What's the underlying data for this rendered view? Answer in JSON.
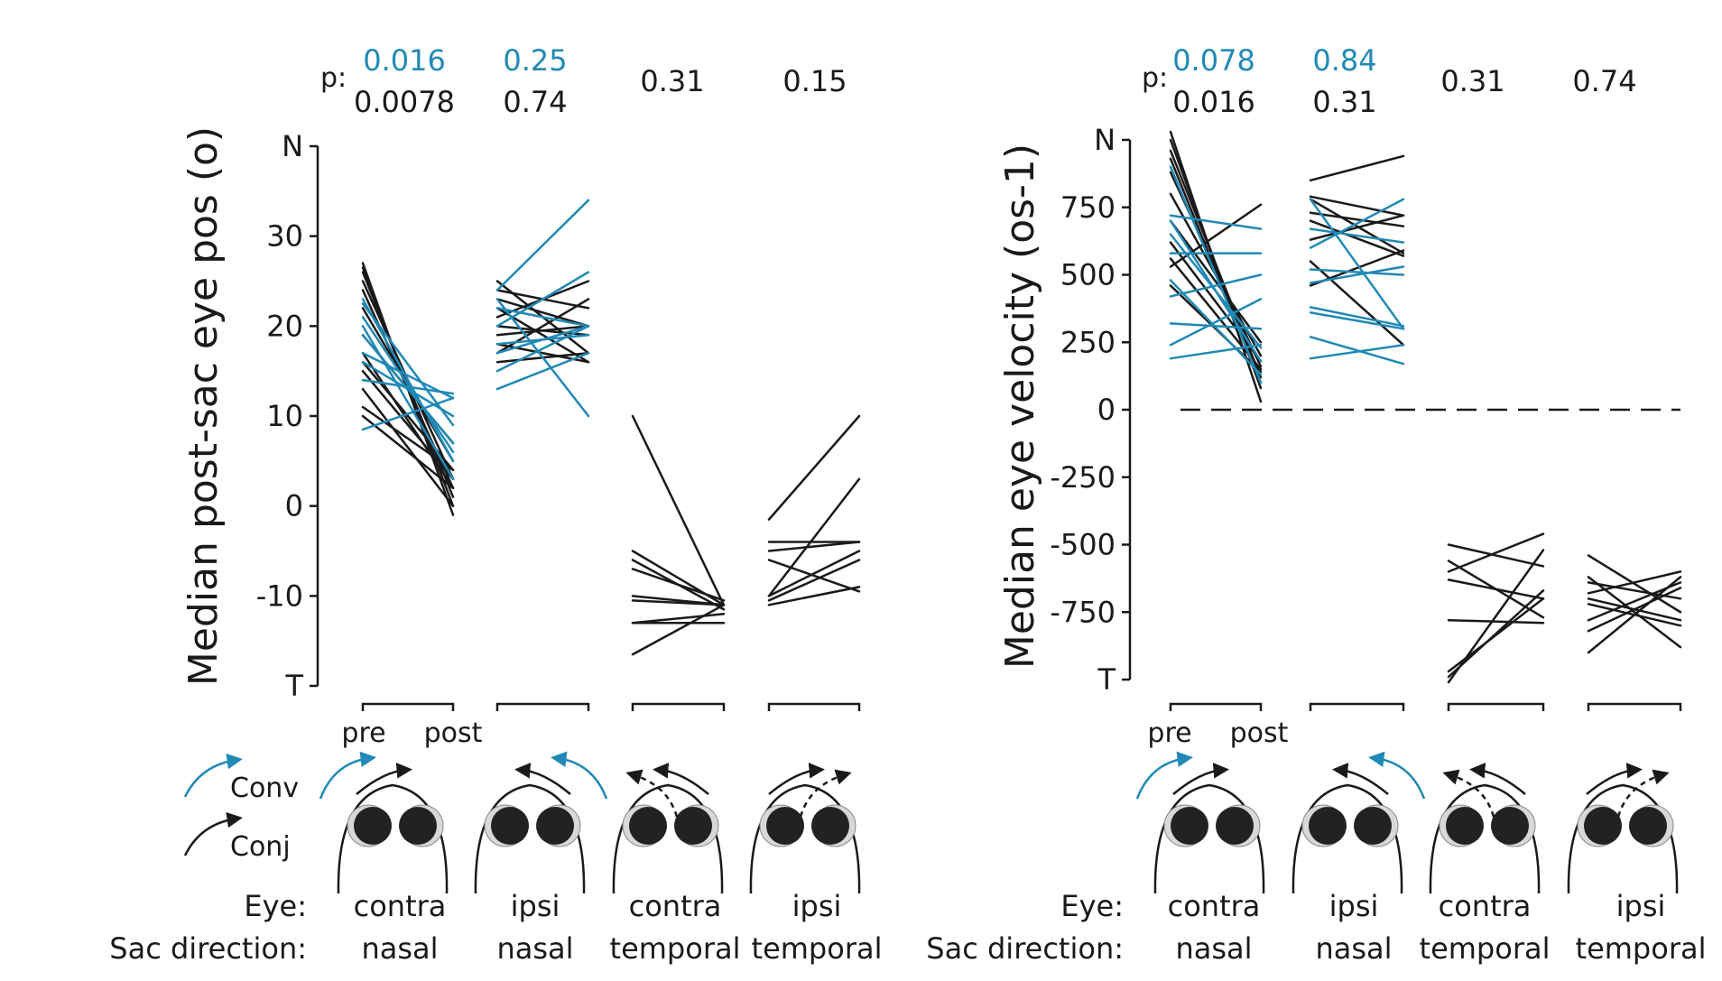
{
  "figure": {
    "colors": {
      "conv": "#2189b5",
      "conj": "#1a1a1a",
      "eye_fill": "#222222"
    },
    "condition_labels": {
      "eye_row_label": "Eye:",
      "sac_row_label": "Sac direction:"
    },
    "conditions": [
      {
        "eye": "contra",
        "sac": "nasal"
      },
      {
        "eye": "ipsi",
        "sac": "nasal"
      },
      {
        "eye": "contra",
        "sac": "temporal"
      },
      {
        "eye": "ipsi",
        "sac": "temporal"
      }
    ],
    "legend": {
      "conv": "Conv",
      "conj": "Conj"
    },
    "pre_label": "pre",
    "post_label": "post",
    "p_label": "p:"
  },
  "chart_data": [
    {
      "type": "line",
      "title": "",
      "ylabel": "Median post-sac eye pos (o)",
      "xlabel": "",
      "ylim": [
        -20,
        40
      ],
      "yticks": [
        -10,
        0,
        10,
        20,
        30
      ],
      "ytick_labels": [
        "-10",
        "0",
        "10",
        "20",
        "30"
      ],
      "top_tick_label": "N",
      "bottom_tick_label": "T",
      "zero_line": false,
      "p_values": [
        {
          "conv": "0.016",
          "conj": "0.0078"
        },
        {
          "conv": "0.25",
          "conj": "0.74"
        },
        {
          "conv": "",
          "conj": "0.31"
        },
        {
          "conv": "",
          "conj": "0.15"
        }
      ],
      "groups": [
        {
          "conj": [
            [
              27,
              -1
            ],
            [
              26.5,
              0
            ],
            [
              26,
              1
            ],
            [
              25,
              3
            ],
            [
              24,
              2
            ],
            [
              22,
              5
            ],
            [
              19,
              7
            ],
            [
              17,
              2
            ],
            [
              16,
              4
            ],
            [
              15,
              3
            ],
            [
              13,
              0
            ],
            [
              11,
              4
            ],
            [
              10,
              2
            ]
          ],
          "conv": [
            [
              23,
              5
            ],
            [
              22.5,
              9
            ],
            [
              21,
              6
            ],
            [
              20,
              3
            ],
            [
              19,
              7
            ],
            [
              17,
              12
            ],
            [
              16,
              10
            ],
            [
              14,
              12.5
            ],
            [
              8.5,
              12
            ]
          ]
        },
        {
          "conj": [
            [
              25,
              17
            ],
            [
              24,
              22
            ],
            [
              23,
              20
            ],
            [
              22,
              16
            ],
            [
              21,
              25
            ],
            [
              20,
              19
            ],
            [
              19,
              20
            ],
            [
              18,
              16
            ],
            [
              17,
              23
            ],
            [
              16,
              17
            ]
          ],
          "conv": [
            [
              24,
              34
            ],
            [
              23,
              10
            ],
            [
              22,
              20
            ],
            [
              20,
              26
            ],
            [
              18,
              19
            ],
            [
              17,
              20
            ],
            [
              15,
              20
            ],
            [
              13,
              17
            ]
          ]
        },
        {
          "conj": [
            [
              10,
              -11
            ],
            [
              -5,
              -11
            ],
            [
              -6,
              -11.5
            ],
            [
              -7,
              -10.5
            ],
            [
              -10,
              -11
            ],
            [
              -10.5,
              -11
            ],
            [
              -13,
              -12
            ],
            [
              -13,
              -13
            ],
            [
              -16.5,
              -11
            ]
          ],
          "conv": []
        },
        {
          "conj": [
            [
              -1.5,
              10
            ],
            [
              -4,
              -4
            ],
            [
              -5,
              -4
            ],
            [
              -6,
              -9.5
            ],
            [
              -10,
              3
            ],
            [
              -10,
              -5
            ],
            [
              -10.5,
              -6
            ],
            [
              -11,
              -9
            ]
          ],
          "conv": []
        }
      ]
    },
    {
      "type": "line",
      "title": "",
      "ylabel": "Median eye velocity (os-1)",
      "xlabel": "",
      "ylim": [
        -1000,
        1000
      ],
      "yticks": [
        -750,
        -500,
        -250,
        0,
        250,
        500,
        750
      ],
      "ytick_labels": [
        "-750",
        "-500",
        "-250",
        "0",
        "250",
        "500",
        "750"
      ],
      "top_tick_label": "N",
      "bottom_tick_label": "T",
      "zero_line": true,
      "p_values": [
        {
          "conv": "0.078",
          "conj": "0.016"
        },
        {
          "conv": "0.84",
          "conj": "0.31"
        },
        {
          "conv": "",
          "conj": "0.31"
        },
        {
          "conv": "",
          "conj": "0.74"
        }
      ],
      "groups": [
        {
          "conj": [
            [
              1030,
              30
            ],
            [
              1000,
              80
            ],
            [
              960,
              120
            ],
            [
              930,
              100
            ],
            [
              880,
              160
            ],
            [
              800,
              200
            ],
            [
              700,
              250
            ],
            [
              620,
              180
            ],
            [
              560,
              150
            ],
            [
              530,
              760
            ],
            [
              460,
              140
            ]
          ],
          "conv": [
            [
              900,
              100
            ],
            [
              720,
              670
            ],
            [
              700,
              180
            ],
            [
              650,
              230
            ],
            [
              580,
              580
            ],
            [
              480,
              130
            ],
            [
              420,
              500
            ],
            [
              320,
              300
            ],
            [
              240,
              410
            ],
            [
              190,
              240
            ]
          ]
        },
        {
          "conj": [
            [
              850,
              940
            ],
            [
              790,
              720
            ],
            [
              780,
              580
            ],
            [
              730,
              680
            ],
            [
              700,
              570
            ],
            [
              630,
              720
            ],
            [
              550,
              240
            ],
            [
              460,
              590
            ]
          ],
          "conv": [
            [
              780,
              300
            ],
            [
              670,
              620
            ],
            [
              600,
              780
            ],
            [
              520,
              500
            ],
            [
              470,
              530
            ],
            [
              380,
              310
            ],
            [
              360,
              300
            ],
            [
              270,
              170
            ],
            [
              190,
              240
            ]
          ]
        },
        {
          "conj": [
            [
              -500,
              -580
            ],
            [
              -560,
              -770
            ],
            [
              -600,
              -460
            ],
            [
              -630,
              -700
            ],
            [
              -780,
              -790
            ],
            [
              -970,
              -700
            ],
            [
              -990,
              -670
            ],
            [
              -1010,
              -520
            ]
          ],
          "conv": []
        },
        {
          "conj": [
            [
              -540,
              -750
            ],
            [
              -620,
              -880
            ],
            [
              -640,
              -700
            ],
            [
              -680,
              -600
            ],
            [
              -700,
              -780
            ],
            [
              -720,
              -800
            ],
            [
              -780,
              -640
            ],
            [
              -820,
              -660
            ],
            [
              -900,
              -620
            ]
          ],
          "conv": []
        }
      ]
    }
  ]
}
